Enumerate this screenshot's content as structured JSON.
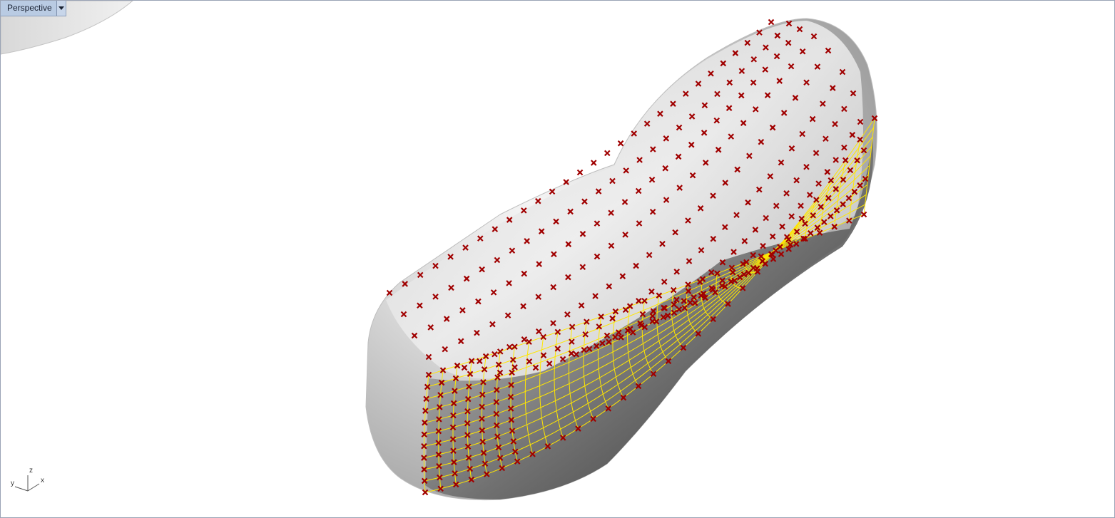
{
  "viewport": {
    "title": "Perspective",
    "menu_icon": "dropdown-arrow-icon"
  },
  "axes": {
    "x": "x",
    "y": "y",
    "z": "z"
  },
  "colors": {
    "background": "#ffffff",
    "border": "#9aa3b5",
    "tab_bg": "#b9cbe3",
    "control_point": "#a00000",
    "isocurve": "#ffe600",
    "isocurve_edge": "#c01010"
  }
}
